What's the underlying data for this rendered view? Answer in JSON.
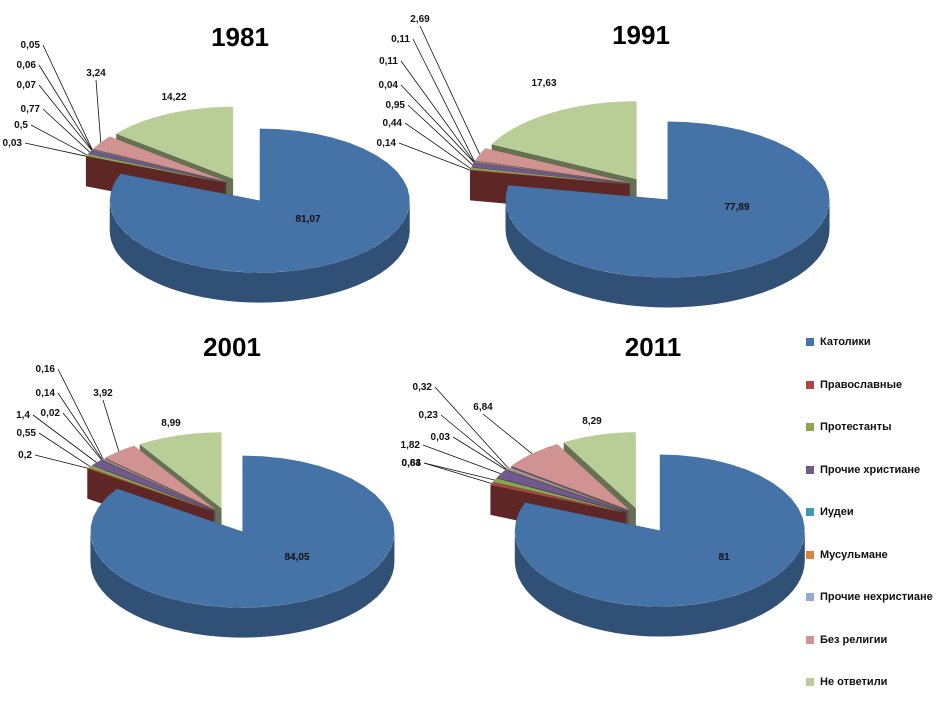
{
  "chart_data": [
    {
      "type": "pie",
      "title": "1981",
      "categories": [
        "Католики",
        "Православные",
        "Протестанты",
        "Прочие христиане",
        "Иудеи",
        "Мусульмане",
        "Прочие нехристиане",
        "Без религии",
        "Не ответили"
      ],
      "values": [
        81.07,
        0.03,
        0.5,
        0.77,
        0.07,
        0.06,
        0.05,
        3.24,
        14.22
      ],
      "labels": [
        "81,07",
        "0,03",
        "0,5",
        "0,77",
        "0,07",
        "0,06",
        "0,05",
        "3,24",
        "14,22"
      ]
    },
    {
      "type": "pie",
      "title": "1991",
      "categories": [
        "Католики",
        "Православные",
        "Протестанты",
        "Прочие христиане",
        "Иудеи",
        "Мусульмане",
        "Прочие нехристиане",
        "Без религии",
        "Не ответили"
      ],
      "values": [
        77.89,
        0.14,
        0.44,
        0.95,
        0.04,
        0.11,
        0.11,
        2.69,
        17.63
      ],
      "labels": [
        "77,89",
        "0,14",
        "0,44",
        "0,95",
        "0,04",
        "0,11",
        "0,11",
        "2,69",
        "17,63"
      ]
    },
    {
      "type": "pie",
      "title": "2001",
      "categories": [
        "Католики",
        "Православные",
        "Протестанты",
        "Прочие христиане",
        "Иудеи",
        "Мусульмане",
        "Прочие нехристиане",
        "Без религии",
        "Не ответили"
      ],
      "values": [
        84.05,
        0.2,
        0.55,
        1.4,
        0.02,
        0.14,
        0.16,
        3.92,
        8.99
      ],
      "labels": [
        "84,05",
        "0,2",
        "0,55",
        "1,4",
        "0,02",
        "0,14",
        "0,16",
        "3,92",
        "8,99"
      ]
    },
    {
      "type": "pie",
      "title": "2011",
      "categories": [
        "Католики",
        "Православные",
        "Протестанты",
        "Прочие христиане",
        "Иудеи",
        "Мусульмане",
        "Прочие нехристиане",
        "Без религии",
        "Не ответили"
      ],
      "values": [
        81,
        0.63,
        0.84,
        1.82,
        0.03,
        0.23,
        0.32,
        6.84,
        8.29
      ],
      "labels": [
        "81",
        "0,63",
        "0,84",
        "1,82",
        "0,03",
        "0,23",
        "0,32",
        "6,84",
        "8,29"
      ]
    }
  ],
  "legend": {
    "placement": "right",
    "items": [
      {
        "label": "Католики",
        "color": "#4572A7"
      },
      {
        "label": "Православные",
        "color": "#AA4643"
      },
      {
        "label": "Протестанты",
        "color": "#89A54E"
      },
      {
        "label": "Прочие христиане",
        "color": "#71588F"
      },
      {
        "label": "Иудеи",
        "color": "#4198AF"
      },
      {
        "label": "Мусульмане",
        "color": "#DB843D"
      },
      {
        "label": "Прочие нехристиане",
        "color": "#93A9CF"
      },
      {
        "label": "Без религии",
        "color": "#D19392"
      },
      {
        "label": "Не ответили",
        "color": "#B9CD96"
      }
    ]
  }
}
